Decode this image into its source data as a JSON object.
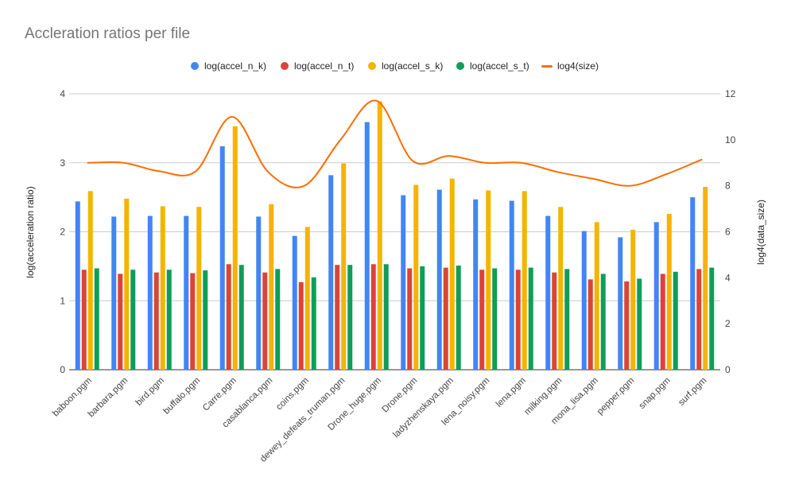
{
  "chart_data": {
    "type": "bar",
    "title": "Accleration ratios per file",
    "categories": [
      "baboon.pgm",
      "barbara.pgm",
      "bird.pgm",
      "buffalo.pgm",
      "Carre.pgm",
      "casablanca.pgm",
      "coins.pgm",
      "dewey_defeats_truman.pgm",
      "Drone_huge.pgm",
      "Drone.pgm",
      "ladyzhenskaya.pgm",
      "lena_noisy.pgm",
      "lena.pgm",
      "milking.pgm",
      "mona_lisa.pgm",
      "pepper.pgm",
      "snap.pgm",
      "surf.pgm"
    ],
    "series": [
      {
        "name": "log(accel_n_k)",
        "type": "bar",
        "axis": "left",
        "color": "#4285f4",
        "values": [
          2.44,
          2.22,
          2.23,
          2.23,
          3.24,
          2.22,
          1.94,
          2.82,
          3.59,
          2.53,
          2.61,
          2.47,
          2.45,
          2.23,
          2.01,
          1.92,
          2.14,
          2.5
        ]
      },
      {
        "name": "log(accel_n_t)",
        "type": "bar",
        "axis": "left",
        "color": "#db4437",
        "values": [
          1.45,
          1.39,
          1.41,
          1.4,
          1.53,
          1.41,
          1.27,
          1.52,
          1.53,
          1.47,
          1.48,
          1.45,
          1.45,
          1.41,
          1.31,
          1.28,
          1.39,
          1.46
        ]
      },
      {
        "name": "log(accel_s_k)",
        "type": "bar",
        "axis": "left",
        "color": "#f4b400",
        "values": [
          2.59,
          2.48,
          2.37,
          2.36,
          3.53,
          2.4,
          2.07,
          2.99,
          3.89,
          2.68,
          2.77,
          2.6,
          2.59,
          2.36,
          2.14,
          2.03,
          2.26,
          2.65
        ]
      },
      {
        "name": "log(accel_s_t)",
        "type": "bar",
        "axis": "left",
        "color": "#0f9d58",
        "values": [
          1.47,
          1.45,
          1.45,
          1.44,
          1.52,
          1.46,
          1.34,
          1.52,
          1.53,
          1.5,
          1.51,
          1.47,
          1.48,
          1.46,
          1.39,
          1.32,
          1.42,
          1.48
        ]
      },
      {
        "name": "log4(size)",
        "type": "line",
        "axis": "right",
        "color": "#ff6d00",
        "values": [
          9.0,
          9.0,
          8.63,
          8.63,
          11.0,
          8.6,
          8.0,
          10.0,
          11.7,
          9.08,
          9.3,
          9.0,
          9.0,
          8.6,
          8.3,
          8.0,
          8.5,
          9.15
        ]
      }
    ],
    "ylabel": "log(acceleration ratio)",
    "ylim": [
      0,
      4
    ],
    "yticks": [
      "0",
      "1",
      "2",
      "3",
      "4"
    ],
    "y2label": "log4(data_size)",
    "y2lim": [
      0,
      12
    ],
    "y2ticks": [
      "0",
      "2",
      "4",
      "6",
      "8",
      "10",
      "12"
    ],
    "grid": true,
    "legend_position": "top"
  }
}
